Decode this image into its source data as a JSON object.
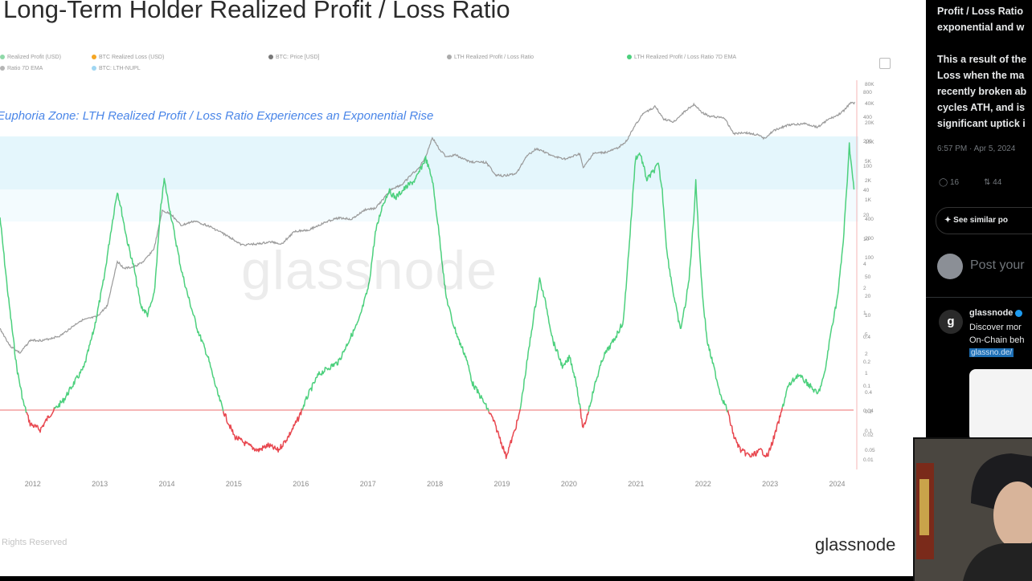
{
  "chart": {
    "title": "Long-Term Holder Realized Profit / Loss Ratio",
    "annotation": "Euphoria Zone: LTH Realized Profit / Loss Ratio Experiences an Exponential Rise",
    "watermark": "glassnode",
    "copyright": "Rights Reserved",
    "brand": "glassnode",
    "legend": [
      "Realized Profit (USD)",
      "BTC Realized Loss (USD)",
      "BTC: Price [USD]",
      "LTH Realized Profit / Loss Ratio",
      "LTH Realized Profit / Loss Ratio 7D EMA",
      "Ratio 7D EMA",
      "BTC: LTH-NUPL"
    ],
    "legend_colors": [
      "#8fd9a8",
      "#f5a623",
      "#777777",
      "#aaaaaa",
      "#4cd07d",
      "#b5b5b5",
      "#9fd6f2"
    ]
  },
  "chart_data": {
    "type": "line",
    "x_ticks": [
      "2012",
      "2013",
      "2014",
      "2015",
      "2016",
      "2017",
      "2018",
      "2019",
      "2020",
      "2021",
      "2022",
      "2023",
      "2024"
    ],
    "x_range": [
      2011.5,
      2024.4
    ],
    "right_axis_ticks": [
      "80K",
      "40K",
      "20K",
      "10K",
      "5K",
      "2K",
      "1K",
      "400",
      "200",
      "100",
      "50",
      "20",
      "10",
      "5",
      "2",
      "1",
      "0.4",
      "0.2",
      "0.1",
      "0.05"
    ],
    "left_axis_ticks": [
      "800",
      "400",
      "200",
      "100",
      "40",
      "20",
      "10",
      "4",
      "2",
      "1",
      "0.4",
      "0.2",
      "0.1",
      "0.04",
      "0.02",
      "0.01"
    ],
    "ratio_baseline": 1,
    "series": [
      {
        "name": "LTH Realized Profit / Loss Ratio 7D EMA",
        "color_above": "#4cd07d",
        "color_below": "#e8474f",
        "axis": "right-inner",
        "points": [
          [
            2011.5,
            150
          ],
          [
            2011.62,
            20
          ],
          [
            2011.75,
            3
          ],
          [
            2011.85,
            1.2
          ],
          [
            2011.95,
            0.7
          ],
          [
            2012.1,
            0.6
          ],
          [
            2012.25,
            0.9
          ],
          [
            2012.45,
            1.3
          ],
          [
            2012.6,
            2
          ],
          [
            2012.75,
            3
          ],
          [
            2012.9,
            8
          ],
          [
            2013.05,
            30
          ],
          [
            2013.15,
            100
          ],
          [
            2013.25,
            300
          ],
          [
            2013.3,
            200
          ],
          [
            2013.4,
            80
          ],
          [
            2013.5,
            40
          ],
          [
            2013.6,
            15
          ],
          [
            2013.7,
            12
          ],
          [
            2013.8,
            20
          ],
          [
            2013.9,
            200
          ],
          [
            2013.95,
            400
          ],
          [
            2014.0,
            250
          ],
          [
            2014.1,
            100
          ],
          [
            2014.2,
            40
          ],
          [
            2014.3,
            20
          ],
          [
            2014.45,
            8
          ],
          [
            2014.6,
            4
          ],
          [
            2014.75,
            1.5
          ],
          [
            2014.85,
            0.9
          ],
          [
            2015.0,
            0.5
          ],
          [
            2015.2,
            0.4
          ],
          [
            2015.35,
            0.35
          ],
          [
            2015.5,
            0.4
          ],
          [
            2015.65,
            0.35
          ],
          [
            2015.8,
            0.5
          ],
          [
            2015.95,
            0.8
          ],
          [
            2016.1,
            1.5
          ],
          [
            2016.25,
            2.5
          ],
          [
            2016.4,
            3
          ],
          [
            2016.55,
            3.5
          ],
          [
            2016.7,
            6
          ],
          [
            2016.85,
            10
          ],
          [
            2017.0,
            25
          ],
          [
            2017.1,
            100
          ],
          [
            2017.2,
            200
          ],
          [
            2017.3,
            300
          ],
          [
            2017.4,
            250
          ],
          [
            2017.5,
            300
          ],
          [
            2017.6,
            350
          ],
          [
            2017.7,
            400
          ],
          [
            2017.85,
            700
          ],
          [
            2017.95,
            400
          ],
          [
            2018.05,
            100
          ],
          [
            2018.15,
            20
          ],
          [
            2018.25,
            10
          ],
          [
            2018.35,
            6
          ],
          [
            2018.45,
            4
          ],
          [
            2018.55,
            2
          ],
          [
            2018.7,
            1.3
          ],
          [
            2018.85,
            0.8
          ],
          [
            2018.95,
            0.5
          ],
          [
            2019.05,
            0.3
          ],
          [
            2019.15,
            0.5
          ],
          [
            2019.25,
            0.9
          ],
          [
            2019.35,
            3
          ],
          [
            2019.45,
            10
          ],
          [
            2019.55,
            30
          ],
          [
            2019.65,
            15
          ],
          [
            2019.75,
            6
          ],
          [
            2019.9,
            3
          ],
          [
            2020.0,
            4
          ],
          [
            2020.1,
            2
          ],
          [
            2020.2,
            0.6
          ],
          [
            2020.28,
            1
          ],
          [
            2020.38,
            2
          ],
          [
            2020.5,
            4
          ],
          [
            2020.65,
            6
          ],
          [
            2020.8,
            10
          ],
          [
            2020.9,
            100
          ],
          [
            2020.98,
            700
          ],
          [
            2021.05,
            800
          ],
          [
            2021.15,
            400
          ],
          [
            2021.25,
            500
          ],
          [
            2021.32,
            600
          ],
          [
            2021.38,
            300
          ],
          [
            2021.45,
            60
          ],
          [
            2021.55,
            20
          ],
          [
            2021.65,
            8
          ],
          [
            2021.72,
            15
          ],
          [
            2021.78,
            30
          ],
          [
            2021.85,
            150
          ],
          [
            2021.88,
            400
          ],
          [
            2021.92,
            100
          ],
          [
            2021.98,
            20
          ],
          [
            2022.05,
            6
          ],
          [
            2022.15,
            3
          ],
          [
            2022.25,
            1.5
          ],
          [
            2022.35,
            1
          ],
          [
            2022.45,
            0.5
          ],
          [
            2022.55,
            0.35
          ],
          [
            2022.7,
            0.3
          ],
          [
            2022.85,
            0.35
          ],
          [
            2022.95,
            0.3
          ],
          [
            2023.05,
            0.5
          ],
          [
            2023.15,
            0.9
          ],
          [
            2023.25,
            1.8
          ],
          [
            2023.4,
            2.5
          ],
          [
            2023.55,
            2
          ],
          [
            2023.7,
            1.5
          ],
          [
            2023.8,
            2.5
          ],
          [
            2023.9,
            8
          ],
          [
            2024.0,
            20
          ],
          [
            2024.08,
            80
          ],
          [
            2024.13,
            300
          ],
          [
            2024.17,
            1000
          ],
          [
            2024.2,
            600
          ],
          [
            2024.24,
            300
          ]
        ]
      },
      {
        "name": "BTC: Price [USD]",
        "color": "#9a9a9a",
        "axis": "right-outer",
        "points": [
          [
            2011.5,
            8
          ],
          [
            2011.65,
            4
          ],
          [
            2011.8,
            3
          ],
          [
            2011.95,
            5
          ],
          [
            2012.15,
            5
          ],
          [
            2012.4,
            6
          ],
          [
            2012.7,
            11
          ],
          [
            2012.95,
            13
          ],
          [
            2013.1,
            20
          ],
          [
            2013.25,
            120
          ],
          [
            2013.35,
            90
          ],
          [
            2013.5,
            95
          ],
          [
            2013.65,
            120
          ],
          [
            2013.8,
            200
          ],
          [
            2013.92,
            900
          ],
          [
            2014.05,
            800
          ],
          [
            2014.2,
            500
          ],
          [
            2014.4,
            600
          ],
          [
            2014.6,
            500
          ],
          [
            2014.8,
            380
          ],
          [
            2015.0,
            280
          ],
          [
            2015.1,
            230
          ],
          [
            2015.35,
            240
          ],
          [
            2015.55,
            260
          ],
          [
            2015.7,
            240
          ],
          [
            2015.9,
            400
          ],
          [
            2016.1,
            420
          ],
          [
            2016.4,
            600
          ],
          [
            2016.55,
            680
          ],
          [
            2016.75,
            650
          ],
          [
            2016.95,
            950
          ],
          [
            2017.1,
            1000
          ],
          [
            2017.35,
            2200
          ],
          [
            2017.5,
            2600
          ],
          [
            2017.65,
            4000
          ],
          [
            2017.75,
            5000
          ],
          [
            2017.85,
            8000
          ],
          [
            2017.95,
            17000
          ],
          [
            2018.05,
            11000
          ],
          [
            2018.15,
            8000
          ],
          [
            2018.3,
            8500
          ],
          [
            2018.5,
            6500
          ],
          [
            2018.75,
            6300
          ],
          [
            2018.9,
            3800
          ],
          [
            2019.0,
            3700
          ],
          [
            2019.2,
            4000
          ],
          [
            2019.35,
            8000
          ],
          [
            2019.5,
            11000
          ],
          [
            2019.6,
            10000
          ],
          [
            2019.75,
            8000
          ],
          [
            2019.95,
            7200
          ],
          [
            2020.15,
            9000
          ],
          [
            2020.2,
            5000
          ],
          [
            2020.35,
            9000
          ],
          [
            2020.55,
            9500
          ],
          [
            2020.7,
            11000
          ],
          [
            2020.85,
            15000
          ],
          [
            2020.98,
            29000
          ],
          [
            2021.1,
            45000
          ],
          [
            2021.28,
            60000
          ],
          [
            2021.4,
            36000
          ],
          [
            2021.55,
            32000
          ],
          [
            2021.7,
            47000
          ],
          [
            2021.85,
            65000
          ],
          [
            2021.98,
            46000
          ],
          [
            2022.1,
            40000
          ],
          [
            2022.3,
            38000
          ],
          [
            2022.45,
            20000
          ],
          [
            2022.6,
            21000
          ],
          [
            2022.8,
            19000
          ],
          [
            2022.9,
            16500
          ],
          [
            2023.05,
            23000
          ],
          [
            2023.25,
            28000
          ],
          [
            2023.5,
            30000
          ],
          [
            2023.7,
            26000
          ],
          [
            2023.85,
            35000
          ],
          [
            2024.0,
            42000
          ],
          [
            2024.1,
            52000
          ],
          [
            2024.18,
            68000
          ],
          [
            2024.25,
            69000
          ]
        ]
      }
    ]
  },
  "tweet": {
    "lines": [
      "Profit / Loss Ratio",
      "exponential and w",
      "",
      "This a result of the",
      "Loss when the ma",
      "recently broken ab",
      "cycles ATH, and is",
      "significant uptick i"
    ],
    "timestamp": "6:57 PM · Apr 5, 2024",
    "replies": "16",
    "reposts": "44",
    "see_similar": "See similar po",
    "reply_placeholder": "Post your",
    "author": "glassnode",
    "author_initial": "g",
    "author_lines": [
      "Discover mor",
      "On-Chain beh"
    ],
    "author_link": "glassno.de/"
  }
}
